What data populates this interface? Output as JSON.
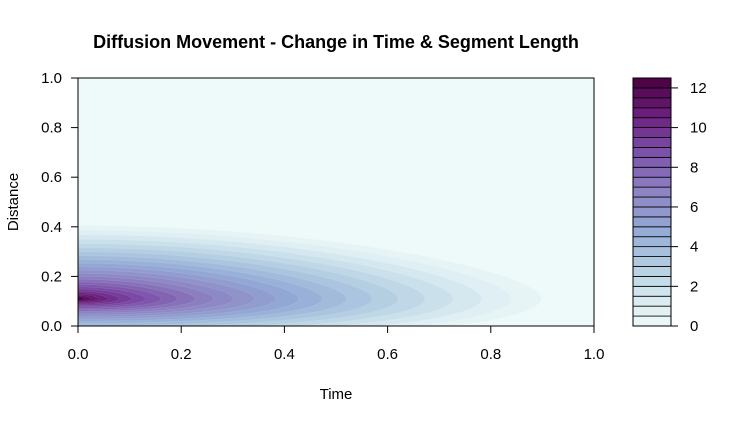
{
  "chart_data": {
    "type": "contour",
    "title": "Diffusion Movement - Change in Time & Segment Length",
    "xlabel": "Time",
    "ylabel": "Distance",
    "xlim": [
      0,
      1
    ],
    "ylim": [
      0,
      1
    ],
    "x_ticks": [
      "0.0",
      "0.2",
      "0.4",
      "0.6",
      "0.8",
      "1.0"
    ],
    "y_ticks": [
      "0.0",
      "0.2",
      "0.4",
      "0.6",
      "0.8",
      "1.0"
    ],
    "colorbar": {
      "min": 0,
      "max": 12.5,
      "ticks": [
        "0",
        "2",
        "4",
        "6",
        "8",
        "10",
        "12"
      ],
      "levels": 25,
      "low_color": "#eef9f9",
      "high_color": "#4a0040"
    },
    "peak": {
      "time": 0.0,
      "distance": 0.11,
      "value": 12.5
    },
    "plume_extent_time": 0.95,
    "max_spread_distance": 0.45
  }
}
